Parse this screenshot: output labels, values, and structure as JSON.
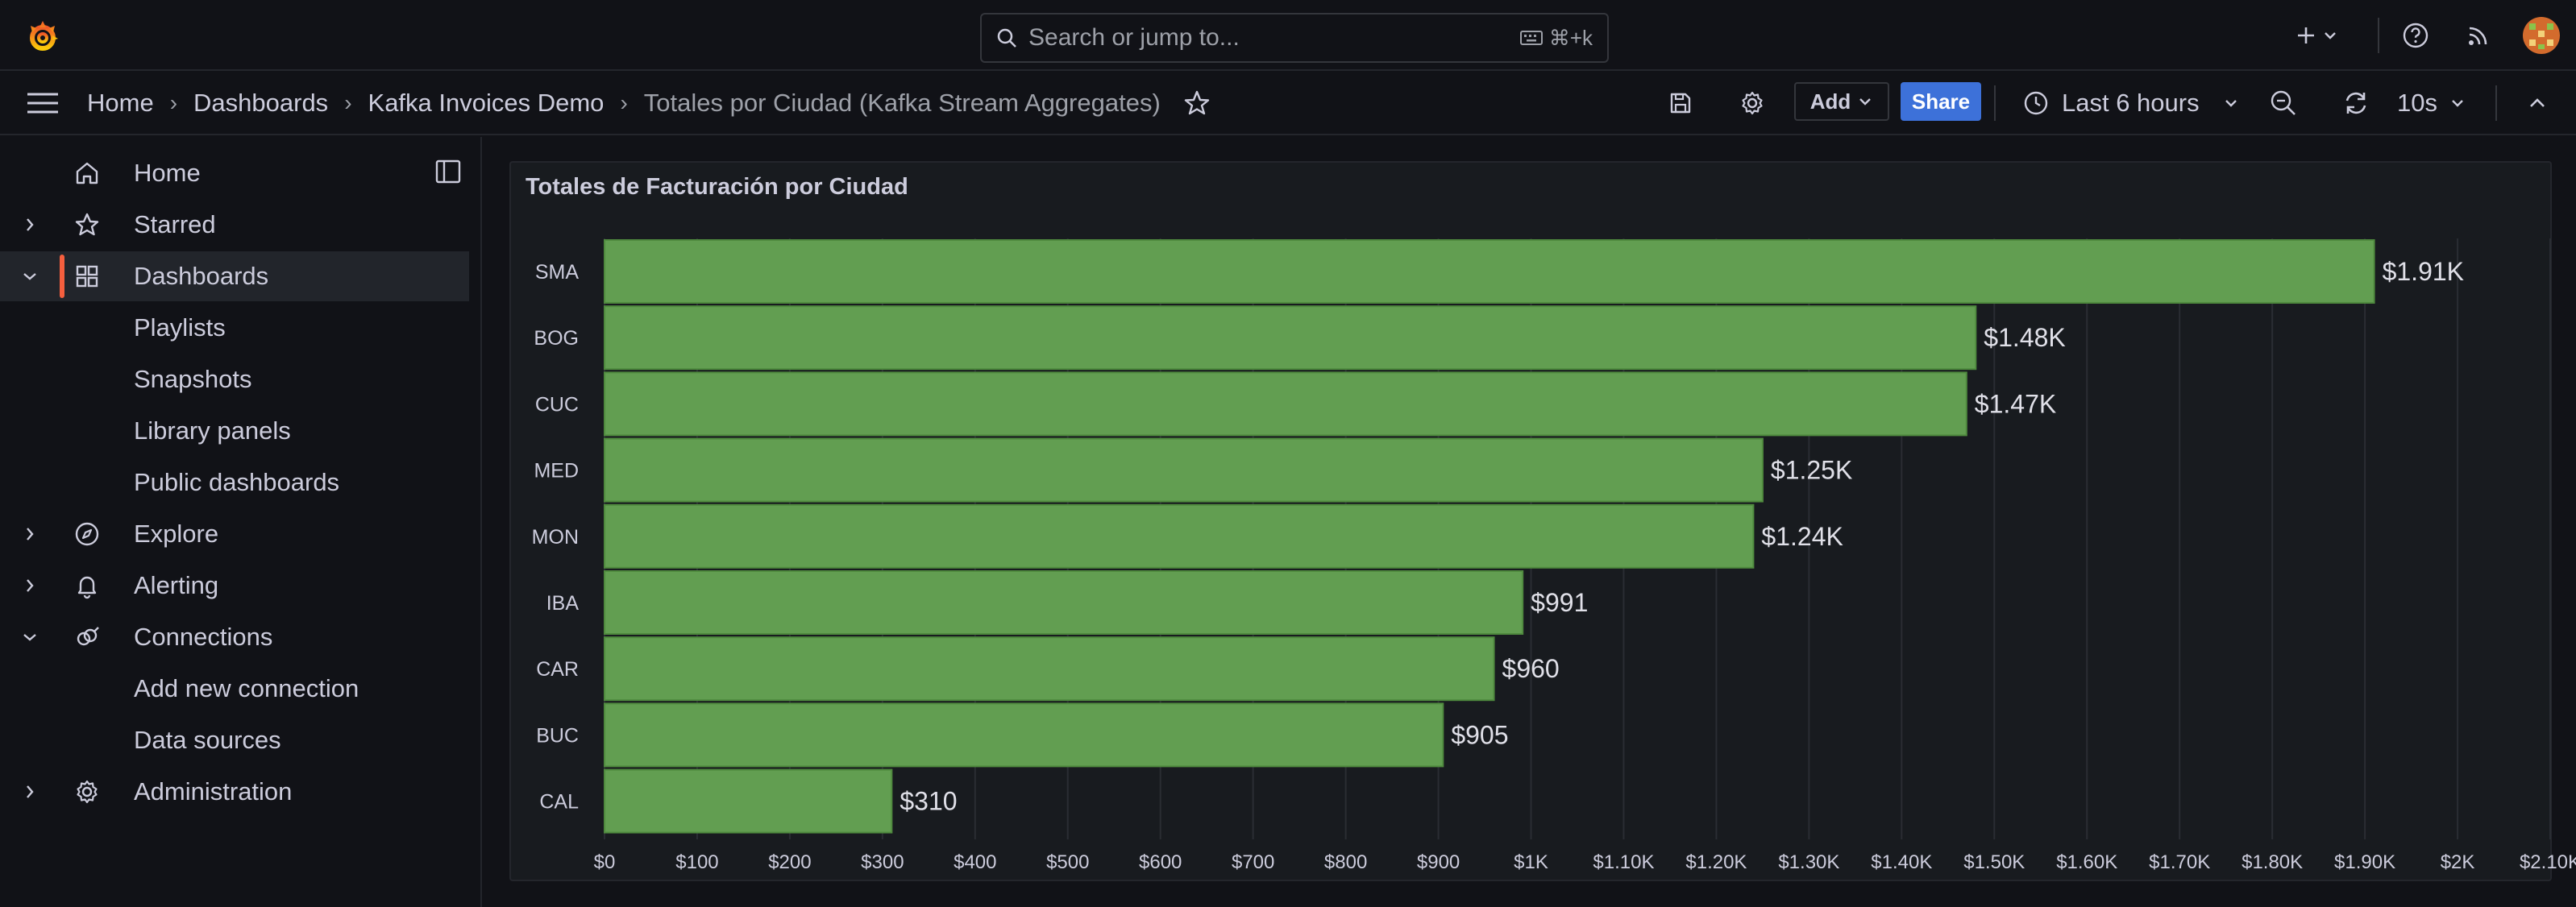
{
  "search": {
    "placeholder": "Search or jump to...",
    "shortcut": "⌘+k"
  },
  "breadcrumb": [
    "Home",
    "Dashboards",
    "Kafka Invoices Demo",
    "Totales por Ciudad (Kafka Stream Aggregates)"
  ],
  "toolbar": {
    "add_label": "Add",
    "share_label": "Share",
    "time_range": "Last 6 hours",
    "refresh_interval": "10s"
  },
  "sidebar": {
    "items": [
      {
        "label": "Home",
        "icon": "home-icon",
        "chevron": "none",
        "level": 0
      },
      {
        "label": "Starred",
        "icon": "star-icon",
        "chevron": "right",
        "level": 0
      },
      {
        "label": "Dashboards",
        "icon": "dashboards-icon",
        "chevron": "down",
        "level": 0,
        "active": true
      },
      {
        "label": "Playlists",
        "level": 1
      },
      {
        "label": "Snapshots",
        "level": 1
      },
      {
        "label": "Library panels",
        "level": 1
      },
      {
        "label": "Public dashboards",
        "level": 1
      },
      {
        "label": "Explore",
        "icon": "compass-icon",
        "chevron": "right",
        "level": 0
      },
      {
        "label": "Alerting",
        "icon": "bell-icon",
        "chevron": "right",
        "level": 0
      },
      {
        "label": "Connections",
        "icon": "connections-icon",
        "chevron": "down",
        "level": 0
      },
      {
        "label": "Add new connection",
        "level": 1
      },
      {
        "label": "Data sources",
        "level": 1
      },
      {
        "label": "Administration",
        "icon": "cog-icon",
        "chevron": "right",
        "level": 0
      }
    ]
  },
  "panel": {
    "title": "Totales de Facturación por Ciudad"
  },
  "chart_data": {
    "type": "bar",
    "orientation": "horizontal",
    "categories": [
      "SMA",
      "BOG",
      "CUC",
      "MED",
      "MON",
      "IBA",
      "CAR",
      "BUC",
      "CAL"
    ],
    "values": [
      1910,
      1480,
      1470,
      1250,
      1240,
      991,
      960,
      905,
      310
    ],
    "value_labels": [
      "$1.91K",
      "$1.48K",
      "$1.47K",
      "$1.25K",
      "$1.24K",
      "$991",
      "$960",
      "$905",
      "$310"
    ],
    "x_ticks": [
      "$0",
      "$100",
      "$200",
      "$300",
      "$400",
      "$500",
      "$600",
      "$700",
      "$800",
      "$900",
      "$1K",
      "$1.10K",
      "$1.20K",
      "$1.30K",
      "$1.40K",
      "$1.50K",
      "$1.60K",
      "$1.70K",
      "$1.80K",
      "$1.90K",
      "$2K",
      "$2.10K"
    ],
    "xlim": [
      0,
      2100
    ],
    "grid": true,
    "bar_color": "#629e51"
  }
}
